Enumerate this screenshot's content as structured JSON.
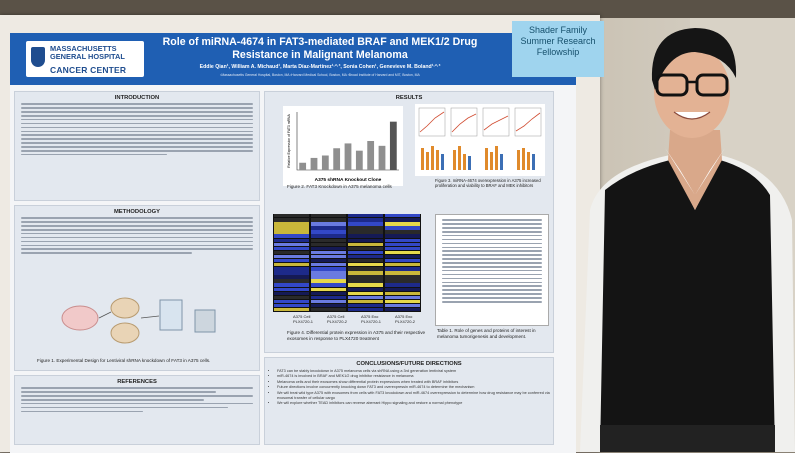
{
  "poster": {
    "logo_line1": "MASSACHUSETTS GENERAL HOSPITAL",
    "logo_line2": "CANCER CENTER",
    "title": "Role of miRNA-4674 in FAT3-mediated BRAF and MEK1/2 Drug Resistance in Malignant Melanoma",
    "authors": "Eddie Qian¹, William A. Michaud¹, Marta Díaz-Martínez¹·²·³, Sonia Cohen¹, Genevieve M. Boland¹·²·³",
    "affiliations": "¹Massachusetts General Hospital, Boston, MA  ²Harvard Medical School, Boston, MA  ³Broad Institute of Harvard and MIT, Boston, MA",
    "tag": "Shader Family Summer Research Fellowship",
    "sections": {
      "intro": "INTRODUCTION",
      "methods": "METHODOLOGY",
      "results": "RESULTS",
      "references": "REFERENCES",
      "conclusions": "CONCLUSIONS/FUTURE DIRECTIONS"
    },
    "captions": {
      "fig1": "Figure 1. Experimental Design for Lentiviral shRNA knockdown of FAT3 in A375 cells.",
      "fig2": "Figure 2. FAT3 Knockdown in A375 melanoma cells",
      "fig3": "Figure 3. miRNA-4674 overexpression in A375 increased proliferation and viability to BRAF and MEK inhibitors",
      "fig4": "Figure 4. Differential protein expression in A375 and their respective exosomes in response to PLX4720 treatment",
      "table1": "Table 1. Role of genes and proteins of interest in melanoma tumorigenesis and development.",
      "fig2_xlabel": "A375 shRNA Knockout Clone",
      "fig2_ylabel": "Relative Expression of FAT3 mRNA"
    },
    "heat_labels": [
      "A375 Cell PLX4720-1",
      "A375 Cell PLX4720-2",
      "A375 Exo PLX4720-1",
      "A375 Exo PLX4720-2"
    ],
    "conclusions": [
      "FAT3 can be stably knockdown in A375 melanoma cells via shRNA using a 3rd generation lentiviral system",
      "miR-4674 is involved in BRAF and MEK1/2 drug inhibitor resistance in melanoma",
      "Melanoma cells and their exosomes show differential protein expressions when treated with BRAF inhibitors",
      "Future directions involve concurrently knocking down FAT3 and overexpressin miR-4674 to determine the mechanism",
      "We will treat wild type A375 with exosomes from cells with FAT3 knockdown and miR-4674 overexpression to determine how drug resistance may be conferred via exosomal transfer of cellular cargo",
      "We will explore whether TEAD inhibitors can reverse aberrant Hippo signaling and restore a normal phenotype"
    ]
  },
  "chart_data": {
    "type": "bar",
    "title": "",
    "xlabel": "A375 shRNA Knockout Clone",
    "ylabel": "Relative Expression of FAT3 mRNA",
    "categories": [
      "1",
      "2",
      "3",
      "4",
      "5",
      "6",
      "7",
      "8",
      "9"
    ],
    "values": [
      0.15,
      0.25,
      0.3,
      0.45,
      0.55,
      0.4,
      0.6,
      0.5,
      1.0
    ],
    "ylim": [
      0,
      1.2
    ]
  },
  "colors": {
    "header_blue": "#1f5fb3",
    "tag_blue": "#9fd4ee",
    "panel_gray": "#e3e8ef"
  }
}
